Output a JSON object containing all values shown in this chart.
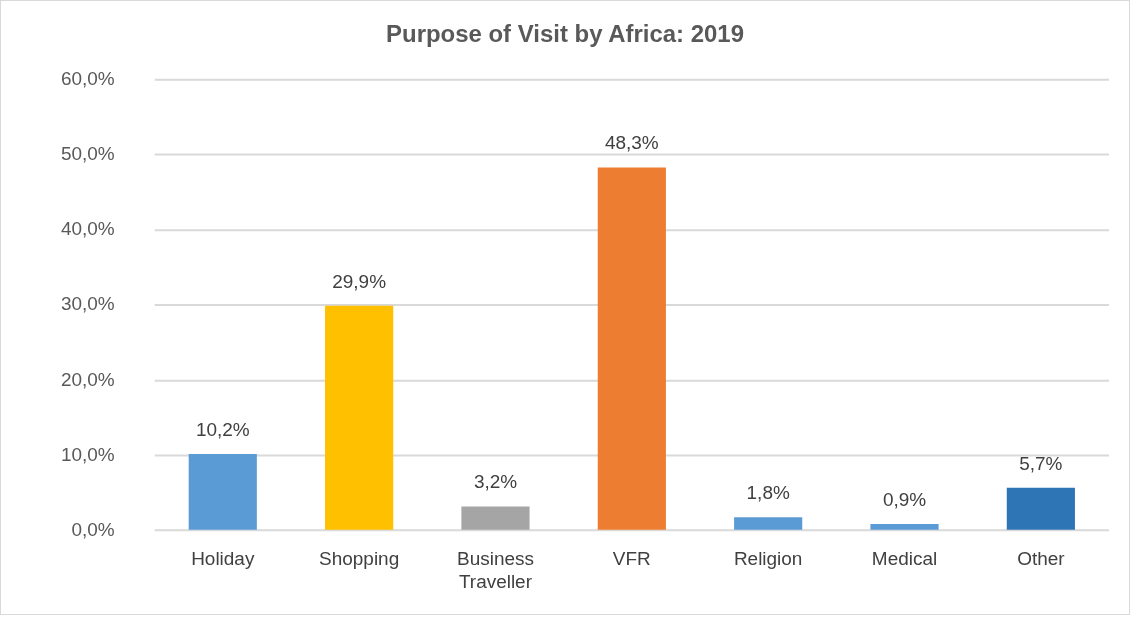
{
  "chart_data": {
    "type": "bar",
    "title": "Purpose of Visit by Africa: 2019",
    "categories": [
      "Holiday",
      "Shopping",
      "Business Traveller",
      "VFR",
      "Religion",
      "Medical",
      "Other"
    ],
    "values": [
      10.2,
      29.9,
      3.2,
      48.3,
      1.8,
      0.9,
      5.7
    ],
    "colors": [
      "#5b9bd5",
      "#ffc000",
      "#a5a5a5",
      "#ed7d31",
      "#5b9bd5",
      "#5b9bd5",
      "#2e75b6"
    ],
    "value_labels": [
      "10,2%",
      "29,9%",
      "3,2%",
      "48,3%",
      "1,8%",
      "0,9%",
      "5,7%"
    ],
    "ylim": [
      0,
      60
    ],
    "yticks": [
      {
        "value": 0,
        "label": "0,0%"
      },
      {
        "value": 10,
        "label": "10,0%"
      },
      {
        "value": 20,
        "label": "20,0%"
      },
      {
        "value": 30,
        "label": "30,0%"
      },
      {
        "value": 40,
        "label": "40,0%"
      },
      {
        "value": 50,
        "label": "50,0%"
      },
      {
        "value": 60,
        "label": "60,0%"
      }
    ],
    "grid": "y",
    "legend": false
  }
}
